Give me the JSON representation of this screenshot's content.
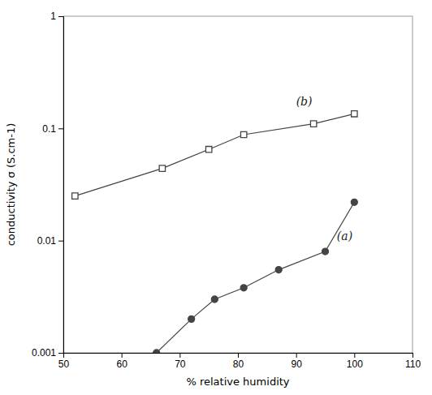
{
  "chart_data": {
    "type": "line",
    "xlabel": "% relative humidity",
    "ylabel": "conductivity σ (S.cm-1)",
    "log": "y",
    "grid": false,
    "xlim": [
      50,
      110
    ],
    "ylim": [
      0.001,
      1
    ],
    "xticks": [
      50,
      60,
      70,
      80,
      90,
      100,
      110
    ],
    "yticks": [
      0.001,
      0.01,
      0.1,
      1
    ],
    "series": [
      {
        "x": [
          52,
          67,
          75,
          81,
          93,
          100
        ],
        "values": [
          0.025,
          0.044,
          0.065,
          0.088,
          0.11,
          0.135
        ],
        "color": "#444444",
        "marker": "open-square",
        "line_style": "solid"
      },
      {
        "x": [
          66,
          72,
          76,
          81,
          87,
          95,
          100
        ],
        "values": [
          0.001,
          0.002,
          0.003,
          0.0038,
          0.0055,
          0.008,
          0.022
        ],
        "color": "#444444",
        "marker": "filled-circle",
        "line_style": "solid"
      }
    ],
    "annotations": [
      {
        "text": "(b)",
        "x": 90,
        "y": 0.175
      },
      {
        "text": "(a)",
        "x": 97,
        "y": 0.011
      }
    ]
  }
}
